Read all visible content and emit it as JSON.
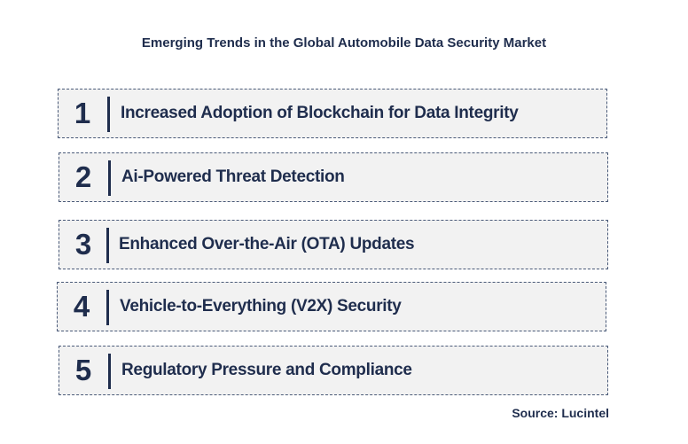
{
  "title": "Emerging Trends in the Global Automobile Data Security Market",
  "trends": [
    {
      "number": "1",
      "label": "Increased Adoption of Blockchain for Data Integrity"
    },
    {
      "number": "2",
      "label": "Ai-Powered Threat Detection"
    },
    {
      "number": "3",
      "label": "Enhanced Over-the-Air (OTA) Updates"
    },
    {
      "number": "4",
      "label": "Vehicle-to-Everything (V2X) Security"
    },
    {
      "number": "5",
      "label": "Regulatory Pressure and Compliance"
    }
  ],
  "source": "Source: Lucintel"
}
